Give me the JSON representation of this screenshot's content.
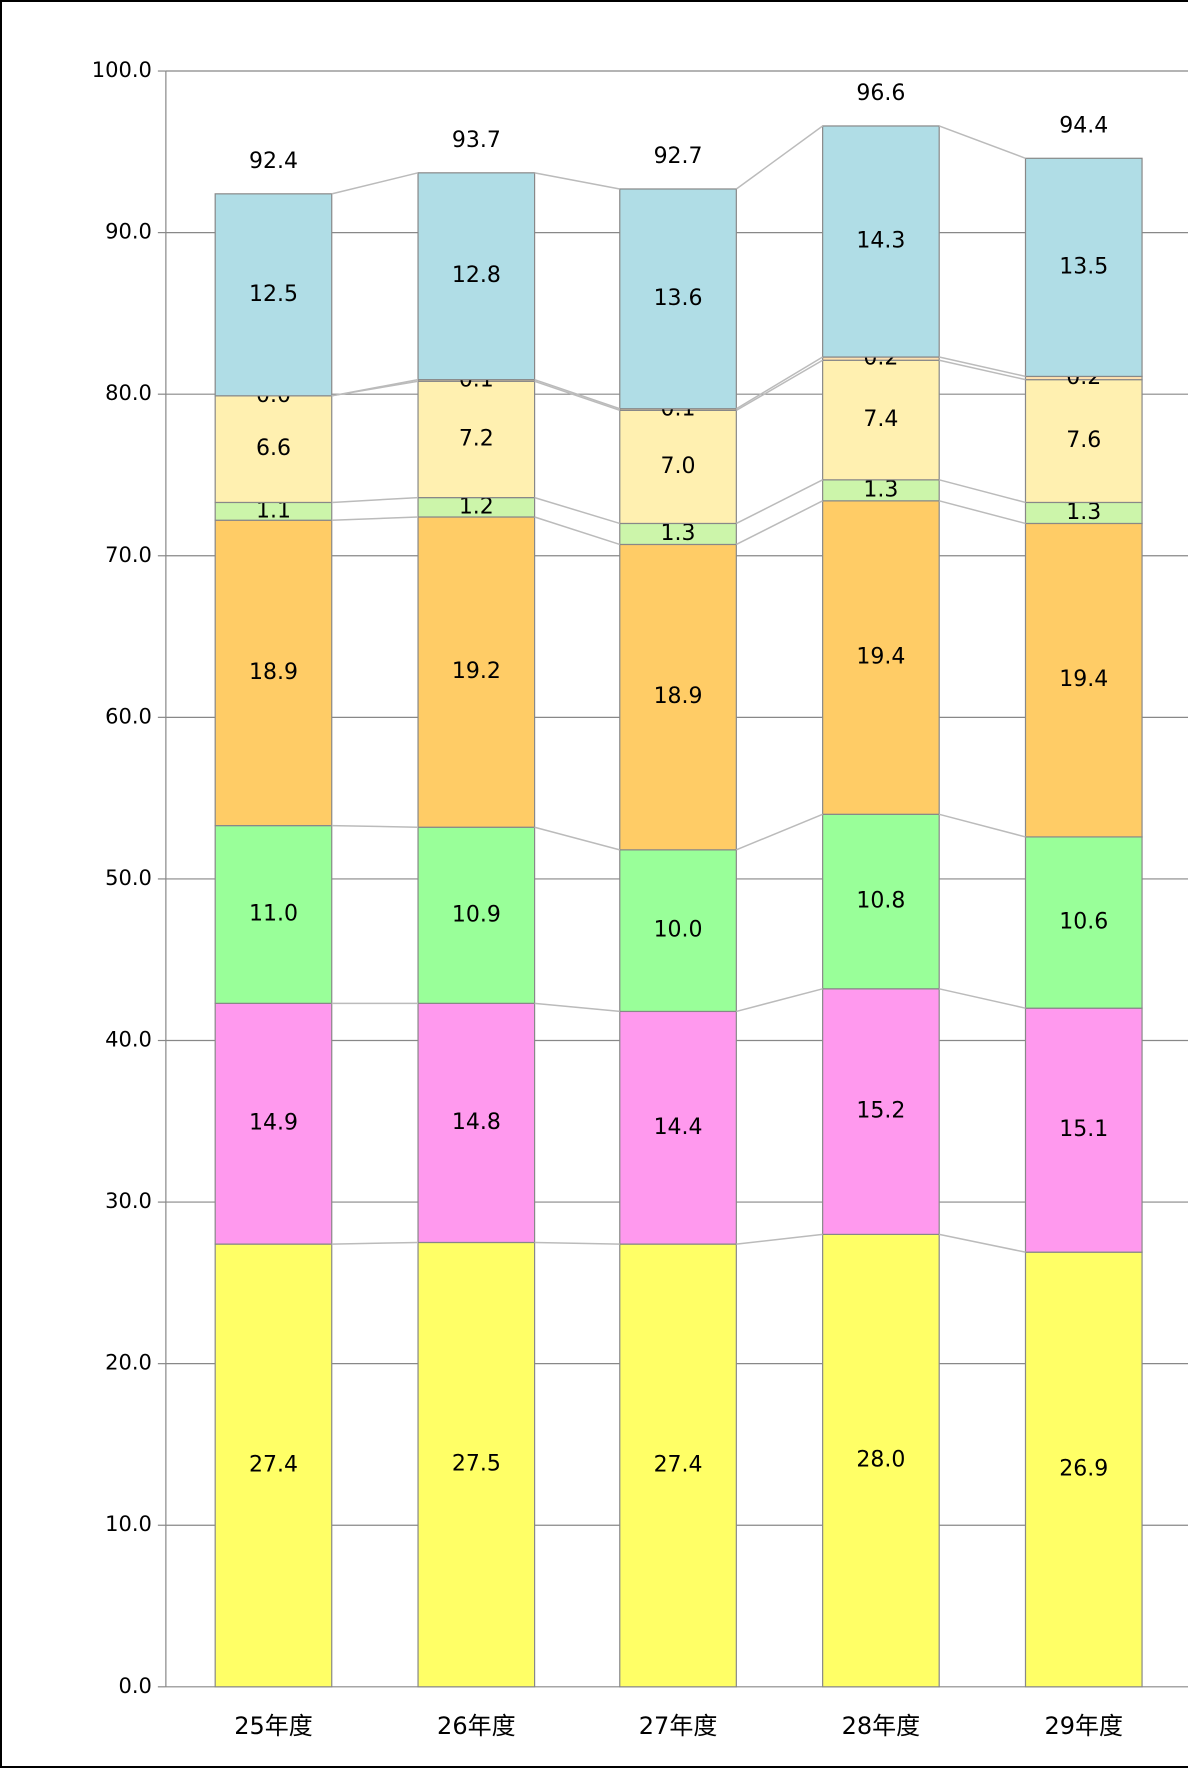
{
  "chart_data": {
    "type": "stacked_bar",
    "categories": [
      "25年度",
      "26年度",
      "27年度",
      "28年度",
      "29年度"
    ],
    "series": [
      {
        "color": "#ffff66",
        "values": [
          27.4,
          27.5,
          27.4,
          28.0,
          26.9
        ],
        "value_labels": [
          "27.4",
          "27.5",
          "27.4",
          "28.0",
          "26.9"
        ]
      },
      {
        "color": "#ff99ee",
        "values": [
          14.9,
          14.8,
          14.4,
          15.2,
          15.1
        ],
        "value_labels": [
          "14.9",
          "14.8",
          "14.4",
          "15.2",
          "15.1"
        ]
      },
      {
        "color": "#99ff99",
        "values": [
          11.0,
          10.9,
          10.0,
          10.8,
          10.6
        ],
        "value_labels": [
          "11.0",
          "10.9",
          "10.0",
          "10.8",
          "10.6"
        ]
      },
      {
        "color": "#ffcc66",
        "values": [
          18.9,
          19.2,
          18.9,
          19.4,
          19.4
        ],
        "value_labels": [
          "18.9",
          "19.2",
          "18.9",
          "19.4",
          "19.4"
        ]
      },
      {
        "color": "#ccf5aa",
        "values": [
          1.1,
          1.2,
          1.3,
          1.3,
          1.3
        ],
        "value_labels": [
          "1.1",
          "1.2",
          "1.3",
          "1.3",
          "1.3"
        ]
      },
      {
        "color": "#fff0b0",
        "values": [
          6.6,
          7.2,
          7.0,
          7.4,
          7.6
        ],
        "value_labels": [
          "6.6",
          "7.2",
          "7.0",
          "7.4",
          "7.6"
        ]
      },
      {
        "color": "#ffe0b0",
        "values": [
          0.0,
          0.1,
          0.1,
          0.2,
          0.2
        ],
        "value_labels": [
          "0.0",
          "0.1",
          "0.1",
          "0.2",
          "0.2"
        ]
      },
      {
        "color": "#b0dde6",
        "values": [
          12.5,
          12.8,
          13.6,
          14.3,
          13.5
        ],
        "value_labels": [
          "12.5",
          "12.8",
          "13.6",
          "14.3",
          "13.5"
        ]
      }
    ],
    "totals": [
      92.4,
      93.7,
      92.7,
      96.6,
      94.4
    ],
    "ylim": [
      0,
      100
    ],
    "yticks": [
      {
        "value": 0,
        "label": "0.0"
      },
      {
        "value": 10,
        "label": "10.0"
      },
      {
        "value": 20,
        "label": "20.0"
      },
      {
        "value": 30,
        "label": "30.0"
      },
      {
        "value": 40,
        "label": "40.0"
      },
      {
        "value": 50,
        "label": "50.0"
      },
      {
        "value": 60,
        "label": "60.0"
      },
      {
        "value": 70,
        "label": "70.0"
      },
      {
        "value": 80,
        "label": "80.0"
      },
      {
        "value": 90,
        "label": "90.0"
      },
      {
        "value": 100,
        "label": "100.0"
      }
    ],
    "grid": true
  }
}
